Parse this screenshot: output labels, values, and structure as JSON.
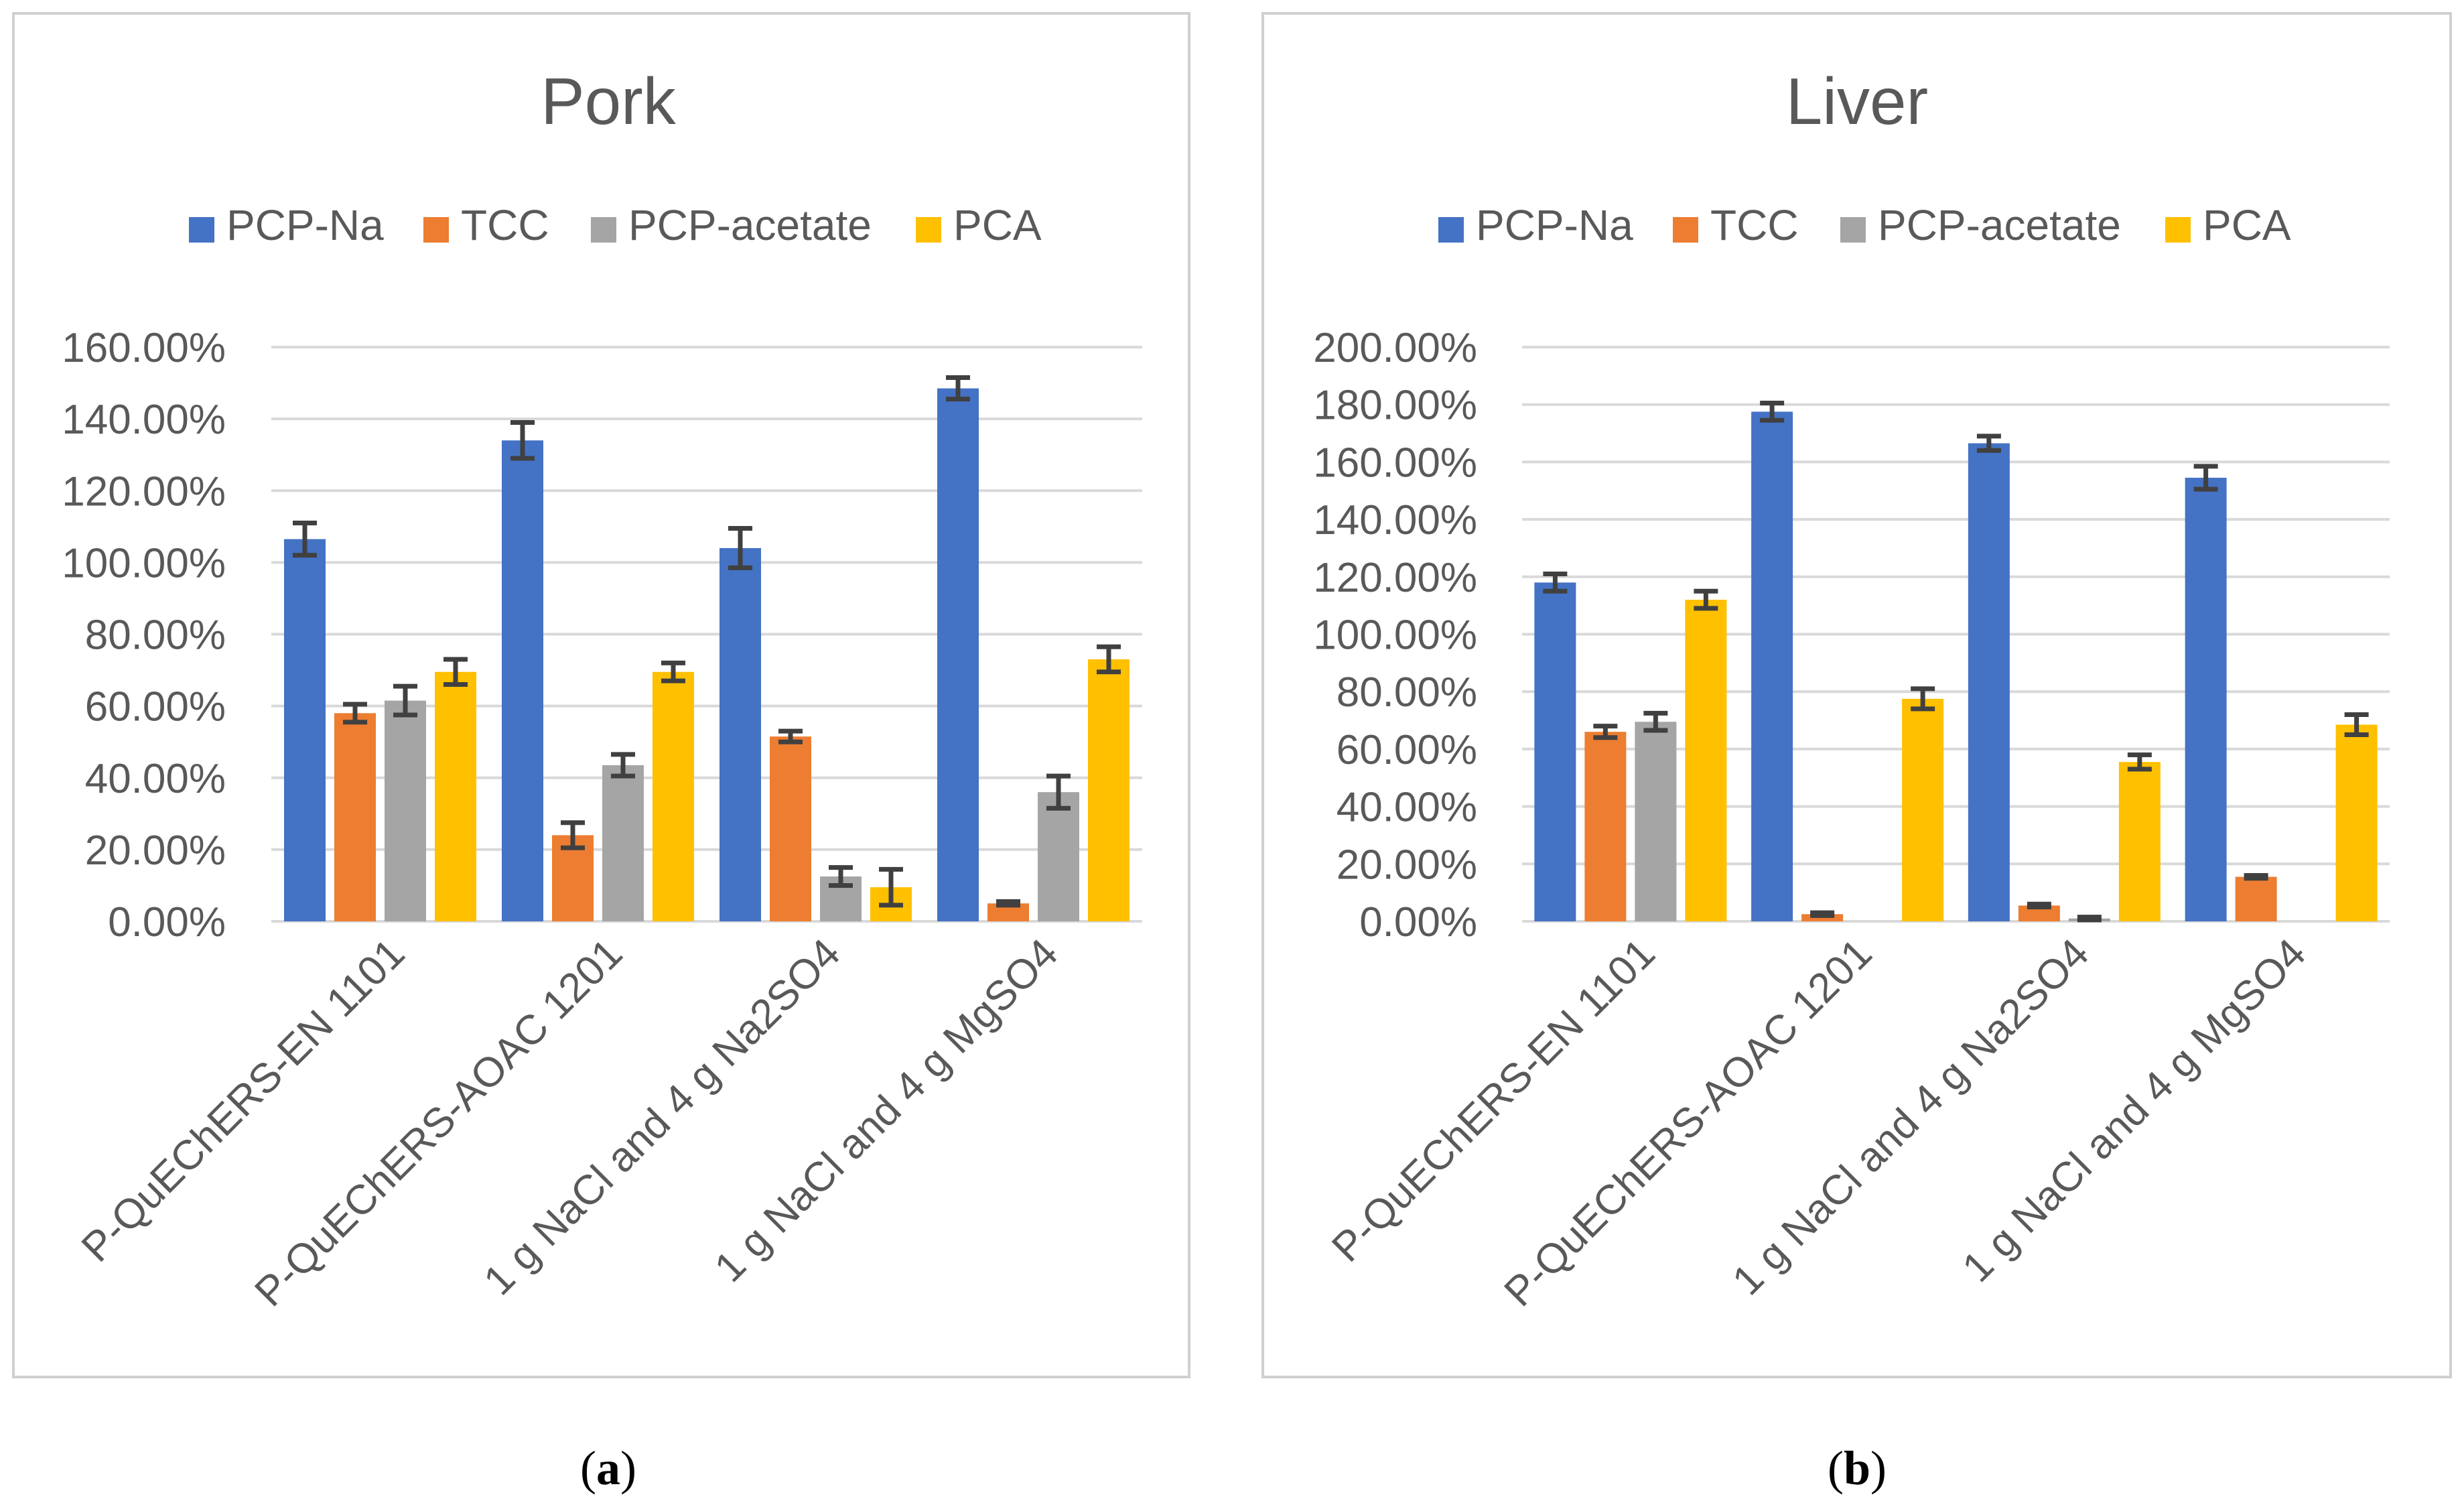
{
  "chart_data": [
    {
      "type": "bar",
      "title": "Pork",
      "caption": "a",
      "categories": [
        "P-QuEChERS-EN 1101",
        "P-QuEChERS-AOAC 1201",
        "1 g NaCl and 4 g Na2SO4",
        "1 g NaCl and 4 g MgSO4"
      ],
      "ylim": [
        0,
        160
      ],
      "yticks": [
        "0.00%",
        "20.00%",
        "40.00%",
        "60.00%",
        "80.00%",
        "100.00%",
        "120.00%",
        "140.00%",
        "160.00%"
      ],
      "ytick_values": [
        0,
        20,
        40,
        60,
        80,
        100,
        120,
        140,
        160
      ],
      "grid": true,
      "legend_position": "top",
      "series": [
        {
          "name": "PCP-Na",
          "color": "#4472C4",
          "values": [
            106.5,
            134,
            104,
            148.5
          ],
          "errors": [
            4.5,
            5,
            5.5,
            3
          ]
        },
        {
          "name": "TCC",
          "color": "#ED7D31",
          "values": [
            58,
            24,
            51.5,
            5
          ],
          "errors": [
            2.5,
            3.5,
            1.5,
            0.5
          ]
        },
        {
          "name": "PCP-acetate",
          "color": "#A5A5A5",
          "values": [
            61.5,
            43.5,
            12.5,
            36
          ],
          "errors": [
            4,
            3,
            2.5,
            4.5
          ]
        },
        {
          "name": "PCA",
          "color": "#FFC000",
          "values": [
            69.5,
            69.5,
            9.5,
            73
          ],
          "errors": [
            3.5,
            2.5,
            5,
            3.5
          ]
        }
      ]
    },
    {
      "type": "bar",
      "title": "Liver",
      "caption": "b",
      "categories": [
        "P-QuEChERS-EN 1101",
        "P-QuEChERS-AOAC 1201",
        "1 g NaCl and 4 g Na2SO4",
        "1 g NaCl and 4 g MgSO4"
      ],
      "ylim": [
        0,
        200
      ],
      "yticks": [
        "0.00%",
        "20.00%",
        "40.00%",
        "60.00%",
        "80.00%",
        "100.00%",
        "120.00%",
        "140.00%",
        "160.00%",
        "180.00%",
        "200.00%"
      ],
      "ytick_values": [
        0,
        20,
        40,
        60,
        80,
        100,
        120,
        140,
        160,
        180,
        200
      ],
      "grid": true,
      "legend_position": "top",
      "series": [
        {
          "name": "PCP-Na",
          "color": "#4472C4",
          "values": [
            118,
            177.5,
            166.5,
            154.5
          ],
          "errors": [
            3,
            3,
            2.5,
            4
          ]
        },
        {
          "name": "TCC",
          "color": "#ED7D31",
          "values": [
            66,
            2.5,
            5.5,
            15.5
          ],
          "errors": [
            2,
            0.5,
            0.5,
            0.5
          ]
        },
        {
          "name": "PCP-acetate",
          "color": "#A5A5A5",
          "values": [
            69.5,
            0,
            1,
            0
          ],
          "errors": [
            3,
            0,
            0.5,
            0
          ]
        },
        {
          "name": "PCA",
          "color": "#FFC000",
          "values": [
            112,
            77.5,
            55.5,
            68.5
          ],
          "errors": [
            3,
            3.5,
            2.5,
            3.5
          ]
        }
      ]
    }
  ]
}
